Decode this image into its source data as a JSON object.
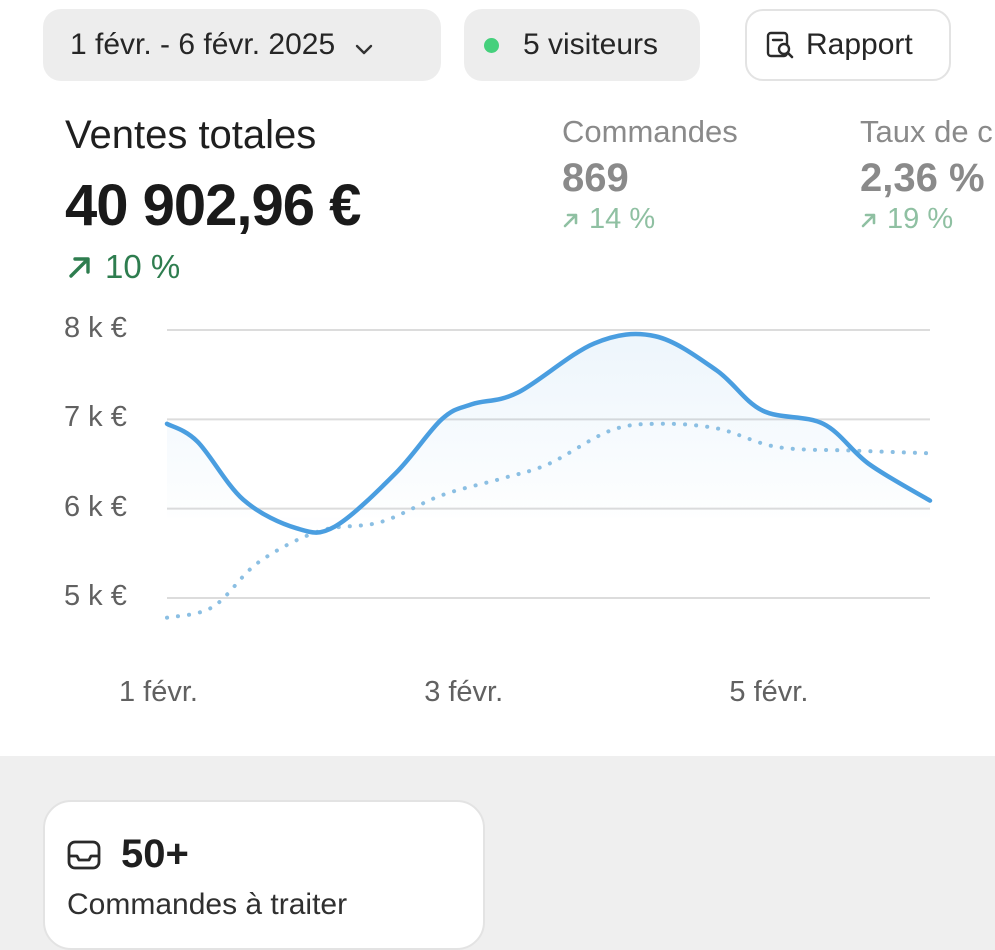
{
  "toolbar": {
    "date_range": "1 févr. - 6 févr. 2025",
    "visitors": "5 visiteurs",
    "report_label": "Rapport"
  },
  "metrics": {
    "main": {
      "title": "Ventes totales",
      "value": "40 902,96 €",
      "change": "10 %"
    },
    "orders": {
      "title": "Commandes",
      "value": "869",
      "change": "14 %"
    },
    "conversion": {
      "title": "Taux de c",
      "value": "2,36 %",
      "change": "19 %"
    }
  },
  "colors": {
    "primary_series": "#4a9ee0",
    "comparison_series": "#8bbfe3",
    "positive_change": "#2e7d4f",
    "positive_change_muted": "#8fc0a2",
    "visitors_dot": "#45d07c"
  },
  "chart_data": {
    "type": "line",
    "y_tick_labels": [
      "8 k €",
      "7 k €",
      "6 k €",
      "5 k €"
    ],
    "x_tick_labels": [
      "1 févr.",
      "3 févr.",
      "5 févr."
    ],
    "ylim": [
      5000,
      8000
    ],
    "grid": true,
    "series": [
      {
        "style": "solid",
        "x": [
          1,
          1.2,
          1.5,
          1.85,
          2.1,
          2.5,
          2.8,
          3.0,
          3.3,
          3.8,
          4.2,
          4.6,
          4.9,
          5.3,
          5.6,
          6.0
        ],
        "y": [
          6950,
          6750,
          6100,
          5780,
          5800,
          6400,
          7000,
          7170,
          7300,
          7850,
          7930,
          7550,
          7100,
          6950,
          6500,
          6090
        ]
      },
      {
        "style": "dotted",
        "x": [
          1,
          1.3,
          1.6,
          2.0,
          2.4,
          2.8,
          3.2,
          3.5,
          3.9,
          4.2,
          4.6,
          5.0,
          5.5,
          6.0
        ],
        "y": [
          4780,
          4900,
          5400,
          5750,
          5850,
          6150,
          6340,
          6500,
          6870,
          6950,
          6900,
          6690,
          6650,
          6620
        ]
      }
    ]
  },
  "todo": {
    "count": "50+",
    "label": "Commandes à traiter"
  }
}
